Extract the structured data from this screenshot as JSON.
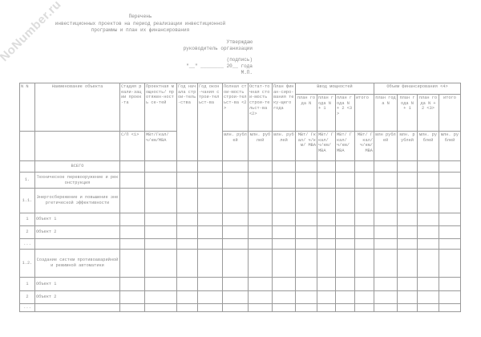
{
  "watermark": "NoNumber.ru",
  "title": {
    "line1": "Перечень",
    "line2": "инвестиционных проектов на период реализации инвестиционной",
    "line3": "программы и план их финансирования"
  },
  "approval": {
    "approve": "Утверждаю",
    "role": "руководитель организации",
    "signature": "(подпись)",
    "date": "\"__\" ________ 20__ года",
    "stamp": "М.П."
  },
  "table": {
    "headers": {
      "num": "N N",
      "name": "Наименование объекта",
      "stage": "Стадия реали-зации проек-та",
      "capacity": "Проектная мощность/ протяжен-ность се-тей",
      "year_start": "Год начала строи-тель-ства",
      "year_end": "Год окон-чания строи-тельст-ва",
      "full_cost": "Полная стои-мость строи-тельст-ва <2>",
      "residual_cost": "Остат-точная стои-мость строи-тельст-ва <2>",
      "plan_fin": "План финан-сиро-вания теку-щего года",
      "input_group": "Ввод мощностей",
      "fin_group": "Объем финансирования <4>",
      "input_cols": [
        "план года N",
        "план года N + 1",
        "план года N + 2 <3>",
        "итого"
      ],
      "fin_cols": [
        "план года N",
        "план года N + 1",
        "план года N + 2 <3>",
        "итого"
      ]
    },
    "units": {
      "stage": "С/П <1>",
      "capacity": "МВт/Гкал/ ч/км/МВА",
      "full_cost": "млн. рублей",
      "residual_cost": "млн. рублей",
      "plan_fin": "млн. рублей",
      "input": "МВт/ Гкал/ ч/км/ МВА",
      "fin": [
        "млн рублей",
        "млн. рублей",
        "млн. рублей",
        "млн. рублей"
      ]
    },
    "rows": [
      {
        "num": "",
        "name": "ВСЕГО",
        "center": true
      },
      {
        "num": "1.",
        "name": "Техническое перевооружение и реконструкция",
        "center": true
      },
      {
        "num": "1.1.",
        "name": "Энергосбережение и повышение энергетической эффективности",
        "center": true
      },
      {
        "num": "1",
        "name": "Объект 1",
        "center": false
      },
      {
        "num": "2",
        "name": "Объект 2",
        "center": false
      },
      {
        "num": "...",
        "name": "",
        "center": false
      },
      {
        "num": "1.2.",
        "name": "Создание систем противоаварийной и режимной автоматики",
        "center": true
      },
      {
        "num": "1",
        "name": "Объект 1",
        "center": false
      },
      {
        "num": "2",
        "name": "Объект 2",
        "center": false
      },
      {
        "num": "...",
        "name": "",
        "center": false
      }
    ]
  }
}
